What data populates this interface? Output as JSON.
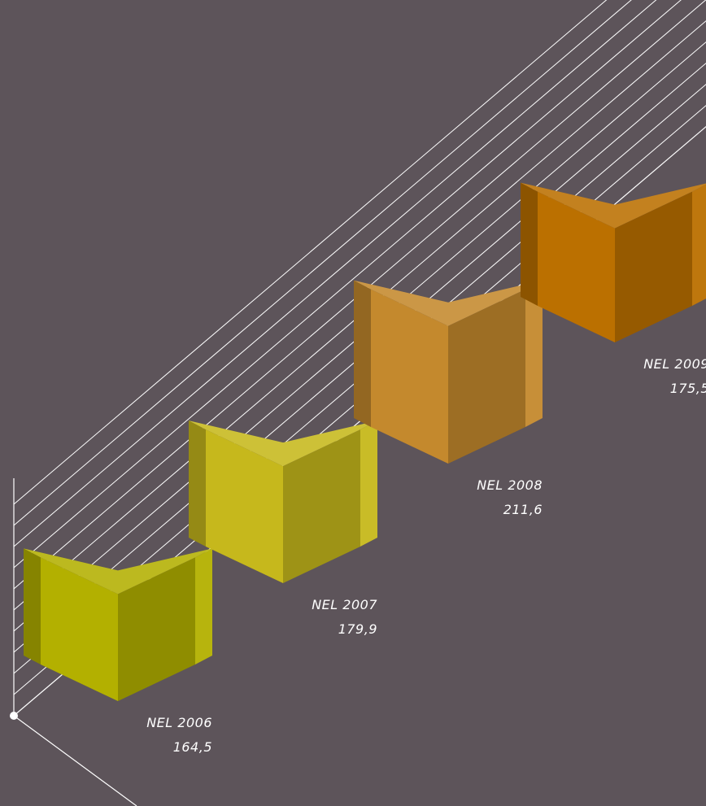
{
  "chart_data": {
    "type": "bar",
    "categories": [
      "NEL 2006",
      "NEL 2007",
      "NEL 2008",
      "NEL 2009"
    ],
    "values": [
      164.5,
      179.9,
      211.6,
      175.5
    ],
    "value_labels": [
      "164,5",
      "179,9",
      "211,6",
      "175,5"
    ],
    "title": "",
    "xlabel": "",
    "ylabel": "",
    "grid": true,
    "legend": "none",
    "colors": [
      "#b3b000",
      "#c6b81c",
      "#c4892d",
      "#bb7000"
    ]
  }
}
